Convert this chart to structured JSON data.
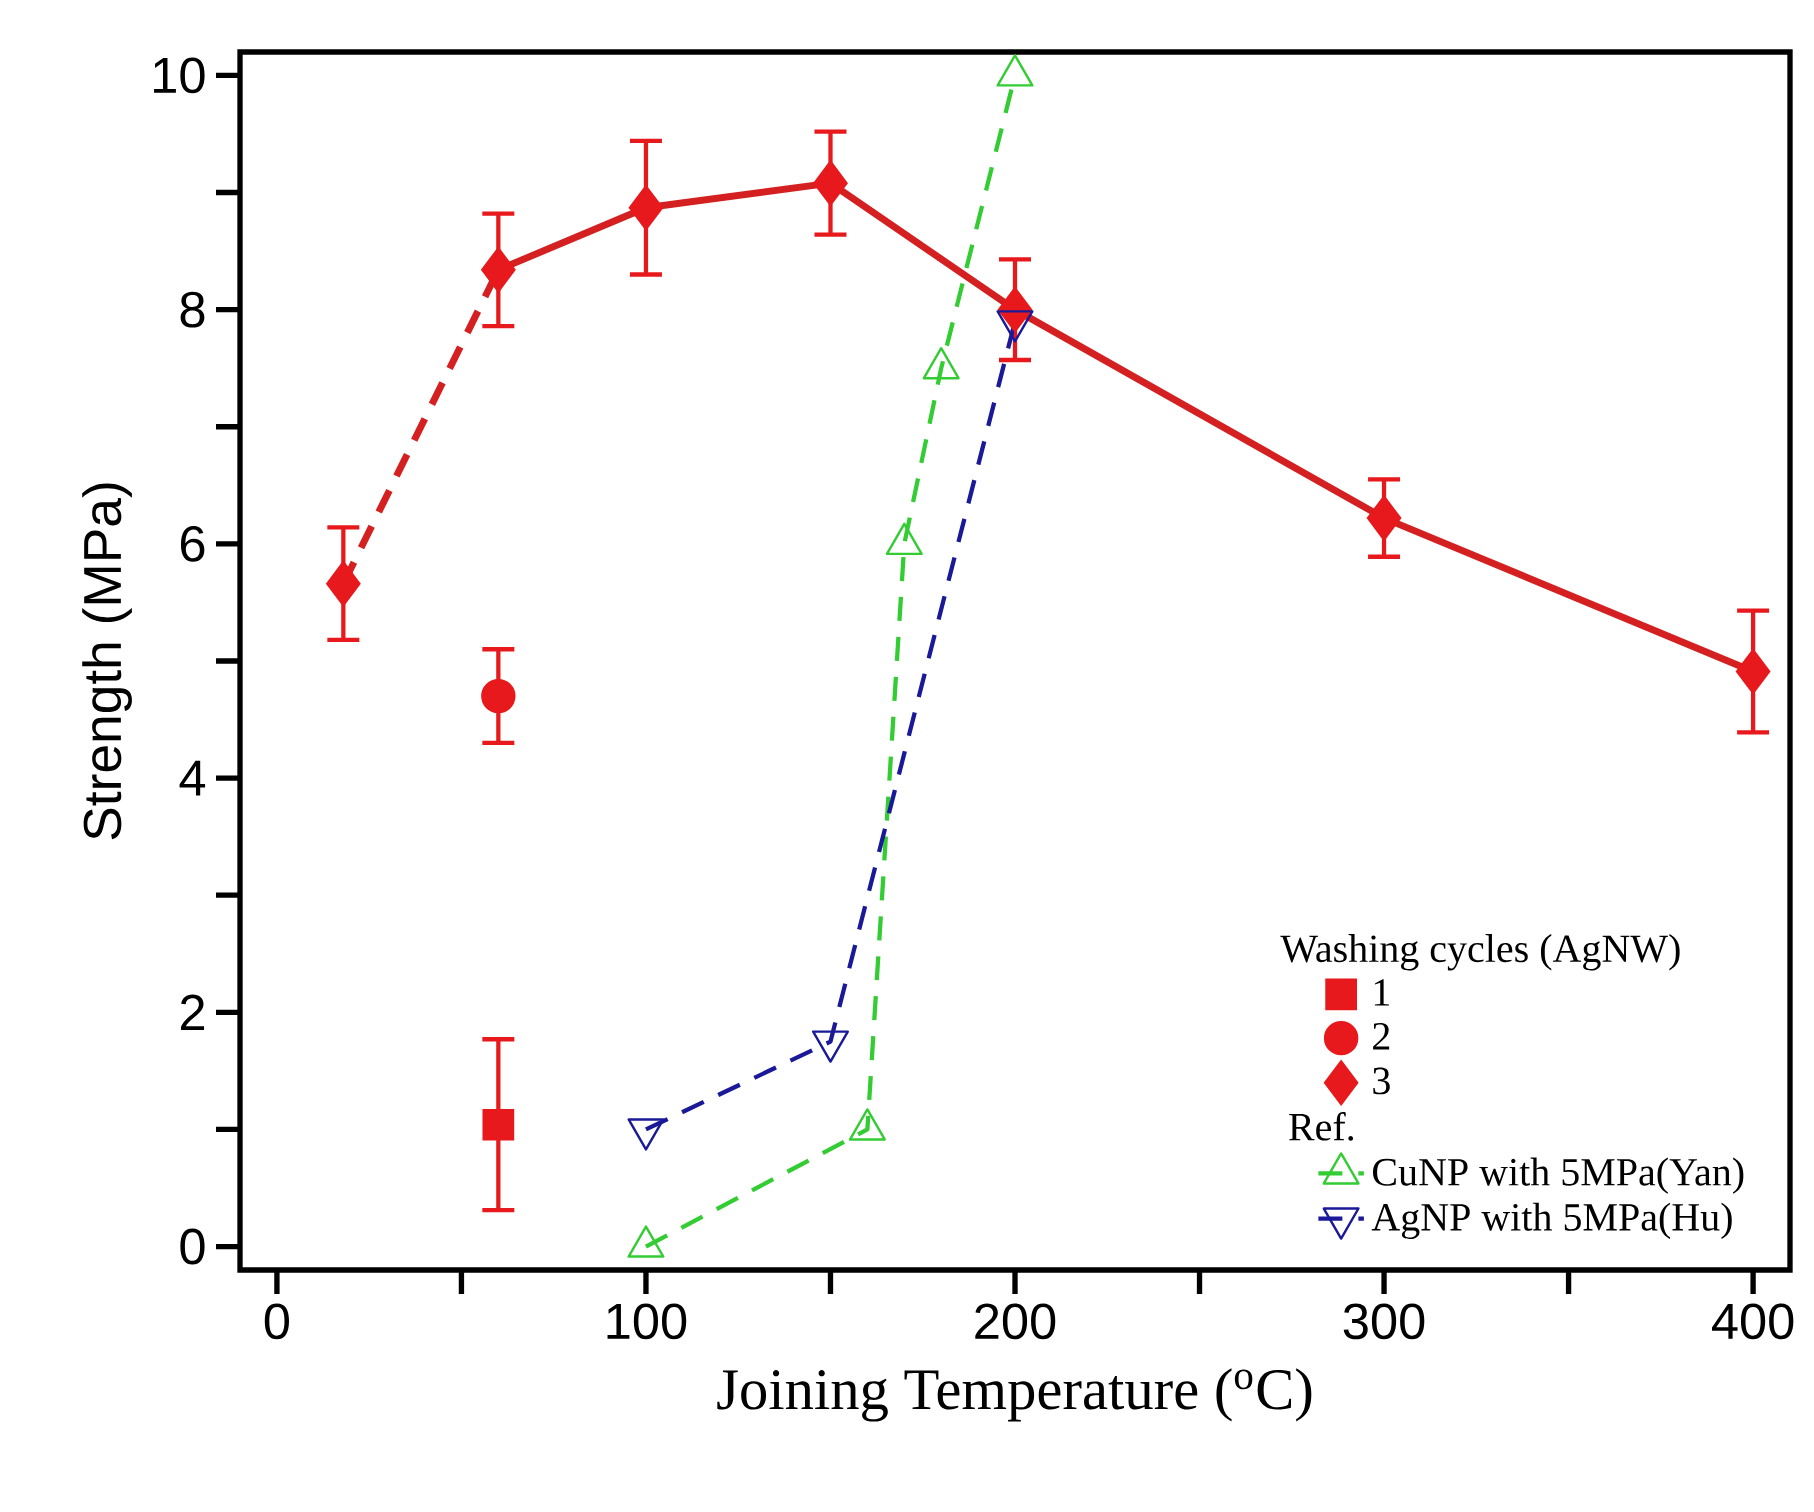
{
  "chart_data": {
    "type": "line",
    "xlabel": "Joining Temperature ($^{o}$C)",
    "ylabel": "Strength (MPa)",
    "legend_title": "Washing cycles (AgNW)",
    "annotations": [
      "Ref."
    ],
    "xlim": [
      -10,
      410
    ],
    "ylim": [
      -0.2,
      10.2
    ],
    "xticks": [
      0,
      {
        "value": 50,
        "label": null
      },
      100,
      {
        "value": 150,
        "label": null
      },
      200,
      {
        "value": 250,
        "label": null
      },
      300,
      {
        "value": 350,
        "label": null
      },
      400
    ],
    "yticks": [
      0,
      {
        "value": 1,
        "label": null
      },
      2,
      {
        "value": 3,
        "label": null
      },
      4,
      {
        "value": 5,
        "label": null
      },
      6,
      {
        "value": 7,
        "label": null
      },
      8,
      {
        "value": 9,
        "label": null
      },
      10
    ],
    "legend": "bottom right",
    "grid": false,
    "series": [
      {
        "marker": "none",
        "line_style": "dashed",
        "color": "#d42020",
        "x": [
          18,
          60
        ],
        "values": [
          5.66,
          8.34
        ]
      },
      {
        "marker": "none",
        "line_style": "solid",
        "color": "#d42020",
        "x": [
          60,
          100,
          150,
          200,
          300,
          400
        ],
        "values": [
          8.34,
          8.87,
          9.08,
          8.0,
          6.22,
          4.91
        ]
      },
      {
        "name": "1",
        "type": "scatter",
        "marker": "square",
        "color": "#e8191c",
        "x": [
          60
        ],
        "values": [
          1.04
        ],
        "errors": [
          0.73
        ]
      },
      {
        "name": "2",
        "type": "scatter",
        "marker": "circle",
        "color": "#e8191c",
        "x": [
          60
        ],
        "values": [
          4.7
        ],
        "errors": [
          0.4
        ]
      },
      {
        "name": "3",
        "type": "scatter",
        "marker": "diamond",
        "color": "#e8191c",
        "x": [
          18,
          60,
          100,
          150,
          200,
          300,
          400
        ],
        "values": [
          5.66,
          8.34,
          8.87,
          9.08,
          8.0,
          6.22,
          4.91
        ],
        "errors": [
          0.48,
          0.48,
          0.57,
          0.44,
          0.43,
          0.33,
          0.52
        ]
      },
      {
        "name": "CuNP with 5MPa(Yan)",
        "marker": "triangle",
        "line_style": "dashed",
        "color": "#33cc33",
        "x": [
          100,
          160,
          170,
          180,
          200
        ],
        "values": [
          0,
          1.0,
          6.0,
          7.5,
          10.0
        ]
      },
      {
        "name": "AgNP with 5MPa(Hu)",
        "marker": "triangle-down",
        "line_style": "dashed",
        "color": "#1a1a99",
        "x": [
          100,
          150,
          200
        ],
        "values": [
          1.0,
          1.75,
          7.9
        ]
      }
    ]
  }
}
